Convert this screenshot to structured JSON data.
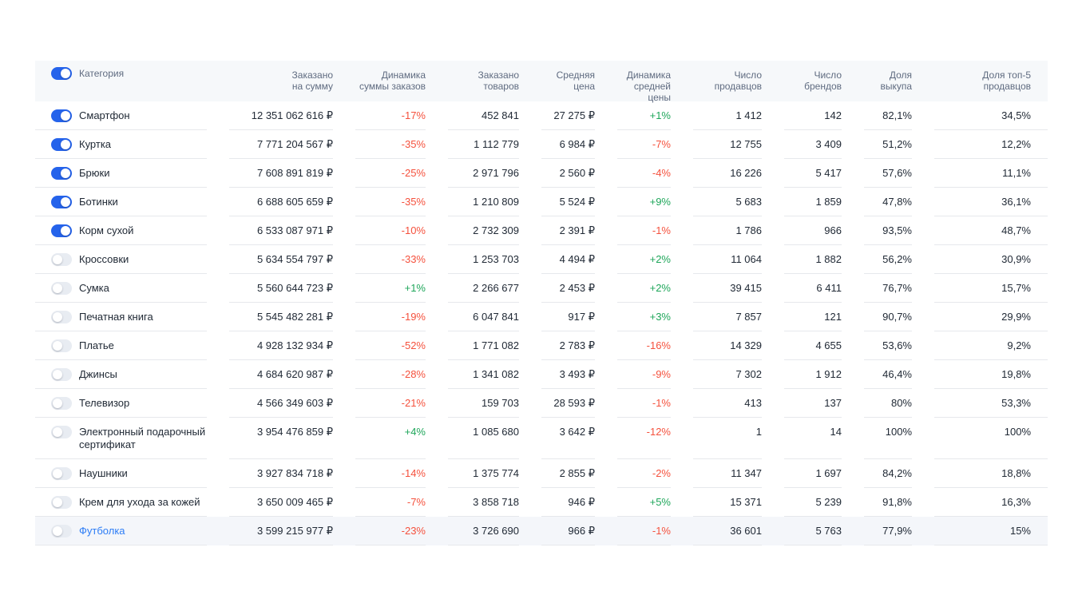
{
  "colors": {
    "accent": "#2563eb",
    "positive": "#1ea65a",
    "negative": "#f5513d",
    "header_bg": "#f6f8fa",
    "header_fg": "#5f6b80",
    "text": "#212a36",
    "divider": "#e6e8ec",
    "toggle_off": "#e8ecf2",
    "highlight_bg": "#f4f6fa",
    "link": "#2d7df6"
  },
  "table": {
    "header_toggle_on": true,
    "columns": {
      "category": {
        "label": "Категория"
      },
      "ordered_sum": {
        "label": "Заказано\nна сумму"
      },
      "sum_dynamics": {
        "label": "Динамика\nсуммы заказов"
      },
      "ordered_items": {
        "label": "Заказано товаров"
      },
      "avg_price": {
        "label": "Средняя цена"
      },
      "price_dynamics": {
        "label": "Динамика\nсредней цены"
      },
      "sellers": {
        "label": "Число продавцов"
      },
      "brands": {
        "label": "Число брендов"
      },
      "buyout_share": {
        "label": "Доля выкупа"
      },
      "top5_share": {
        "label": "Доля топ-5 продавцов"
      }
    },
    "rows": [
      {
        "category": "Смартфон",
        "enabled": true,
        "highlighted": false,
        "ordered_sum": "12 351 062 616 ₽",
        "sum_dynamics": "-17%",
        "ordered_items": "452 841",
        "avg_price": "27 275 ₽",
        "price_dynamics": "+1%",
        "sellers": "1 412",
        "brands": "142",
        "buyout_share": "82,1%",
        "top5_share": "34,5%"
      },
      {
        "category": "Куртка",
        "enabled": true,
        "highlighted": false,
        "ordered_sum": "7 771 204 567 ₽",
        "sum_dynamics": "-35%",
        "ordered_items": "1 112 779",
        "avg_price": "6 984 ₽",
        "price_dynamics": "-7%",
        "sellers": "12 755",
        "brands": "3 409",
        "buyout_share": "51,2%",
        "top5_share": "12,2%"
      },
      {
        "category": "Брюки",
        "enabled": true,
        "highlighted": false,
        "ordered_sum": "7 608 891 819 ₽",
        "sum_dynamics": "-25%",
        "ordered_items": "2 971 796",
        "avg_price": "2 560 ₽",
        "price_dynamics": "-4%",
        "sellers": "16 226",
        "brands": "5 417",
        "buyout_share": "57,6%",
        "top5_share": "11,1%"
      },
      {
        "category": "Ботинки",
        "enabled": true,
        "highlighted": false,
        "ordered_sum": "6 688 605 659 ₽",
        "sum_dynamics": "-35%",
        "ordered_items": "1 210 809",
        "avg_price": "5 524 ₽",
        "price_dynamics": "+9%",
        "sellers": "5 683",
        "brands": "1 859",
        "buyout_share": "47,8%",
        "top5_share": "36,1%"
      },
      {
        "category": "Корм сухой",
        "enabled": true,
        "highlighted": false,
        "ordered_sum": "6 533 087 971 ₽",
        "sum_dynamics": "-10%",
        "ordered_items": "2 732 309",
        "avg_price": "2 391 ₽",
        "price_dynamics": "-1%",
        "sellers": "1 786",
        "brands": "966",
        "buyout_share": "93,5%",
        "top5_share": "48,7%"
      },
      {
        "category": "Кроссовки",
        "enabled": false,
        "highlighted": false,
        "ordered_sum": "5 634 554 797 ₽",
        "sum_dynamics": "-33%",
        "ordered_items": "1 253 703",
        "avg_price": "4 494 ₽",
        "price_dynamics": "+2%",
        "sellers": "11 064",
        "brands": "1 882",
        "buyout_share": "56,2%",
        "top5_share": "30,9%"
      },
      {
        "category": "Сумка",
        "enabled": false,
        "highlighted": false,
        "ordered_sum": "5 560 644 723 ₽",
        "sum_dynamics": "+1%",
        "ordered_items": "2 266 677",
        "avg_price": "2 453 ₽",
        "price_dynamics": "+2%",
        "sellers": "39 415",
        "brands": "6 411",
        "buyout_share": "76,7%",
        "top5_share": "15,7%"
      },
      {
        "category": "Печатная книга",
        "enabled": false,
        "highlighted": false,
        "ordered_sum": "5 545 482 281 ₽",
        "sum_dynamics": "-19%",
        "ordered_items": "6 047 841",
        "avg_price": "917 ₽",
        "price_dynamics": "+3%",
        "sellers": "7 857",
        "brands": "121",
        "buyout_share": "90,7%",
        "top5_share": "29,9%"
      },
      {
        "category": "Платье",
        "enabled": false,
        "highlighted": false,
        "ordered_sum": "4 928 132 934 ₽",
        "sum_dynamics": "-52%",
        "ordered_items": "1 771 082",
        "avg_price": "2 783 ₽",
        "price_dynamics": "-16%",
        "sellers": "14 329",
        "brands": "4 655",
        "buyout_share": "53,6%",
        "top5_share": "9,2%"
      },
      {
        "category": "Джинсы",
        "enabled": false,
        "highlighted": false,
        "ordered_sum": "4 684 620 987 ₽",
        "sum_dynamics": "-28%",
        "ordered_items": "1 341 082",
        "avg_price": "3 493 ₽",
        "price_dynamics": "-9%",
        "sellers": "7 302",
        "brands": "1 912",
        "buyout_share": "46,4%",
        "top5_share": "19,8%"
      },
      {
        "category": "Телевизор",
        "enabled": false,
        "highlighted": false,
        "ordered_sum": "4 566 349 603 ₽",
        "sum_dynamics": "-21%",
        "ordered_items": "159 703",
        "avg_price": "28 593 ₽",
        "price_dynamics": "-1%",
        "sellers": "413",
        "brands": "137",
        "buyout_share": "80%",
        "top5_share": "53,3%"
      },
      {
        "category": "Электронный подарочный сертификат",
        "enabled": false,
        "highlighted": false,
        "ordered_sum": "3 954 476 859 ₽",
        "sum_dynamics": "+4%",
        "ordered_items": "1 085 680",
        "avg_price": "3 642 ₽",
        "price_dynamics": "-12%",
        "sellers": "1",
        "brands": "14",
        "buyout_share": "100%",
        "top5_share": "100%"
      },
      {
        "category": "Наушники",
        "enabled": false,
        "highlighted": false,
        "ordered_sum": "3 927 834 718 ₽",
        "sum_dynamics": "-14%",
        "ordered_items": "1 375 774",
        "avg_price": "2 855 ₽",
        "price_dynamics": "-2%",
        "sellers": "11 347",
        "brands": "1 697",
        "buyout_share": "84,2%",
        "top5_share": "18,8%"
      },
      {
        "category": "Крем для ухода за кожей",
        "enabled": false,
        "highlighted": false,
        "ordered_sum": "3 650 009 465 ₽",
        "sum_dynamics": "-7%",
        "ordered_items": "3 858 718",
        "avg_price": "946 ₽",
        "price_dynamics": "+5%",
        "sellers": "15 371",
        "brands": "5 239",
        "buyout_share": "91,8%",
        "top5_share": "16,3%"
      },
      {
        "category": "Футболка",
        "enabled": false,
        "highlighted": true,
        "ordered_sum": "3 599 215 977 ₽",
        "sum_dynamics": "-23%",
        "ordered_items": "3 726 690",
        "avg_price": "966 ₽",
        "price_dynamics": "-1%",
        "sellers": "36 601",
        "brands": "5 763",
        "buyout_share": "77,9%",
        "top5_share": "15%"
      }
    ]
  }
}
